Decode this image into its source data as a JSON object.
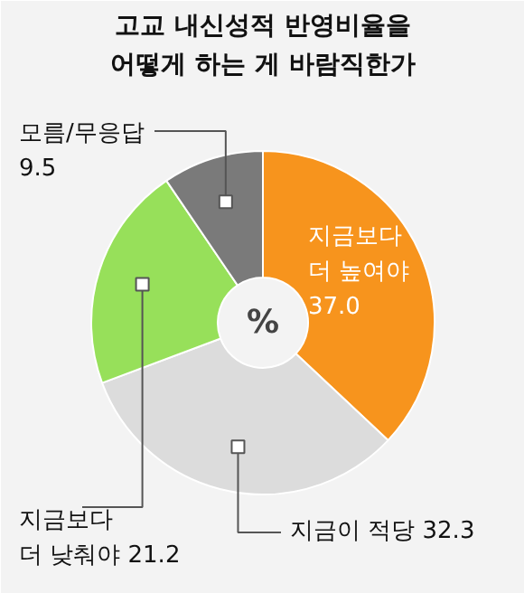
{
  "chart_data": {
    "type": "donut",
    "title": "고교 내신성적 반영비율을\n어떻게 하는 게 바람직한가",
    "categories": [
      "지금보다\n더 높여야",
      "지금이 적당",
      "지금보다\n더 낮춰야",
      "모름/무응답"
    ],
    "values": [
      37.0,
      32.3,
      21.2,
      9.5
    ],
    "colors": [
      "#f7941d",
      "#dcdcdc",
      "#97e05a",
      "#7a7a7a"
    ],
    "annotations": [
      "%"
    ],
    "value_labels": [
      "37.0",
      "32.3",
      "21.2",
      "9.5"
    ]
  }
}
